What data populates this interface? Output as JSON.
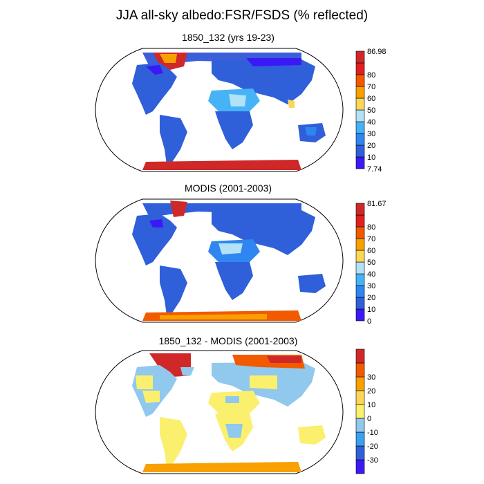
{
  "title": "JJA all-sky albedo:FSR/FSDS (% reflected)",
  "panels": [
    {
      "title": "1850_132 (yrs 19-23)",
      "colorbar": {
        "colors": [
          "#3b19f5",
          "#2f5fd9",
          "#2f86f0",
          "#45b3f5",
          "#b3e1f5",
          "#fad65a",
          "#f7a000",
          "#f25a00",
          "#e02020",
          "#d02828"
        ],
        "labels": [
          "7.74",
          "10",
          "20",
          "30",
          "40",
          "50",
          "60",
          "70",
          "80",
          "86.98"
        ]
      }
    },
    {
      "title": "MODIS (2001-2003)",
      "colorbar": {
        "colors": [
          "#3b19f5",
          "#2f5fd9",
          "#2f86f0",
          "#45b3f5",
          "#b3e1f5",
          "#fad65a",
          "#f7a000",
          "#f25a00",
          "#e02020",
          "#d02828"
        ],
        "labels": [
          "0",
          "10",
          "20",
          "30",
          "40",
          "50",
          "60",
          "70",
          "80",
          "81.67"
        ]
      }
    },
    {
      "title": "1850_132 - MODIS (2001-2003)",
      "colorbar": {
        "colors": [
          "#3b19f5",
          "#2f5fd9",
          "#3aa0f0",
          "#90c8ee",
          "#fbf06e",
          "#fad65a",
          "#f7a000",
          "#f25a00",
          "#d02828"
        ],
        "labels": [
          "-30",
          "-20",
          "-10",
          "0",
          "10",
          "20",
          "30"
        ]
      }
    }
  ]
}
